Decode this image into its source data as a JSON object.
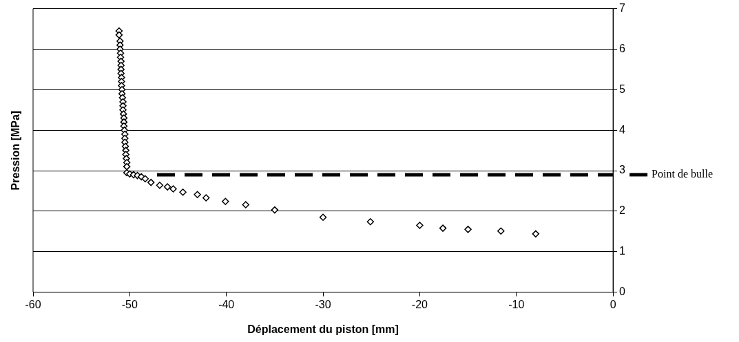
{
  "chart_data": {
    "type": "scatter",
    "xlabel": "Déplacement du piston [mm]",
    "ylabel": "Pression [MPa]",
    "x": [
      -51.1,
      -51.1,
      -51.0,
      -51.0,
      -51.0,
      -50.95,
      -50.95,
      -50.9,
      -50.9,
      -50.9,
      -50.9,
      -50.85,
      -50.85,
      -50.85,
      -50.8,
      -50.8,
      -50.75,
      -50.7,
      -50.7,
      -50.7,
      -50.65,
      -50.6,
      -50.6,
      -50.6,
      -50.55,
      -50.5,
      -50.5,
      -50.5,
      -50.45,
      -50.4,
      -50.4,
      -50.35,
      -50.3,
      -50.3,
      -50.3,
      -50.0,
      -49.6,
      -49.2,
      -48.8,
      -48.4,
      -47.8,
      -46.9,
      -46.1,
      -45.5,
      -44.5,
      -43.0,
      -42.1,
      -40.1,
      -38.0,
      -35.0,
      -30.0,
      -25.1,
      -20.0,
      -17.6,
      -15.0,
      -11.6,
      -8.0
    ],
    "series": [
      {
        "color": "#000000",
        "values": [
          6.45,
          6.35,
          6.2,
          6.1,
          6.0,
          5.9,
          5.8,
          5.7,
          5.6,
          5.5,
          5.4,
          5.3,
          5.2,
          5.1,
          5.0,
          4.9,
          4.8,
          4.7,
          4.6,
          4.5,
          4.4,
          4.3,
          4.2,
          4.1,
          4.0,
          3.9,
          3.8,
          3.7,
          3.6,
          3.5,
          3.4,
          3.3,
          3.2,
          3.1,
          2.95,
          2.92,
          2.9,
          2.88,
          2.85,
          2.8,
          2.71,
          2.64,
          2.6,
          2.55,
          2.47,
          2.41,
          2.33,
          2.24,
          2.16,
          2.03,
          1.85,
          1.74,
          1.65,
          1.58,
          1.55,
          1.51,
          1.44
        ]
      }
    ],
    "xlim": [
      -60,
      0
    ],
    "xticks": [
      -60,
      -50,
      -40,
      -30,
      -20,
      -10,
      0
    ],
    "ylim": [
      0,
      7
    ],
    "yticks": [
      0,
      1,
      2,
      3,
      4,
      5,
      6,
      7
    ],
    "ref_lines": [
      {
        "axis": "y",
        "value": 2.9,
        "label": "Point de bulle",
        "color": "#000000",
        "line_style": "dashed"
      }
    ],
    "grid": "y",
    "legend": false,
    "marker": "diamond"
  }
}
